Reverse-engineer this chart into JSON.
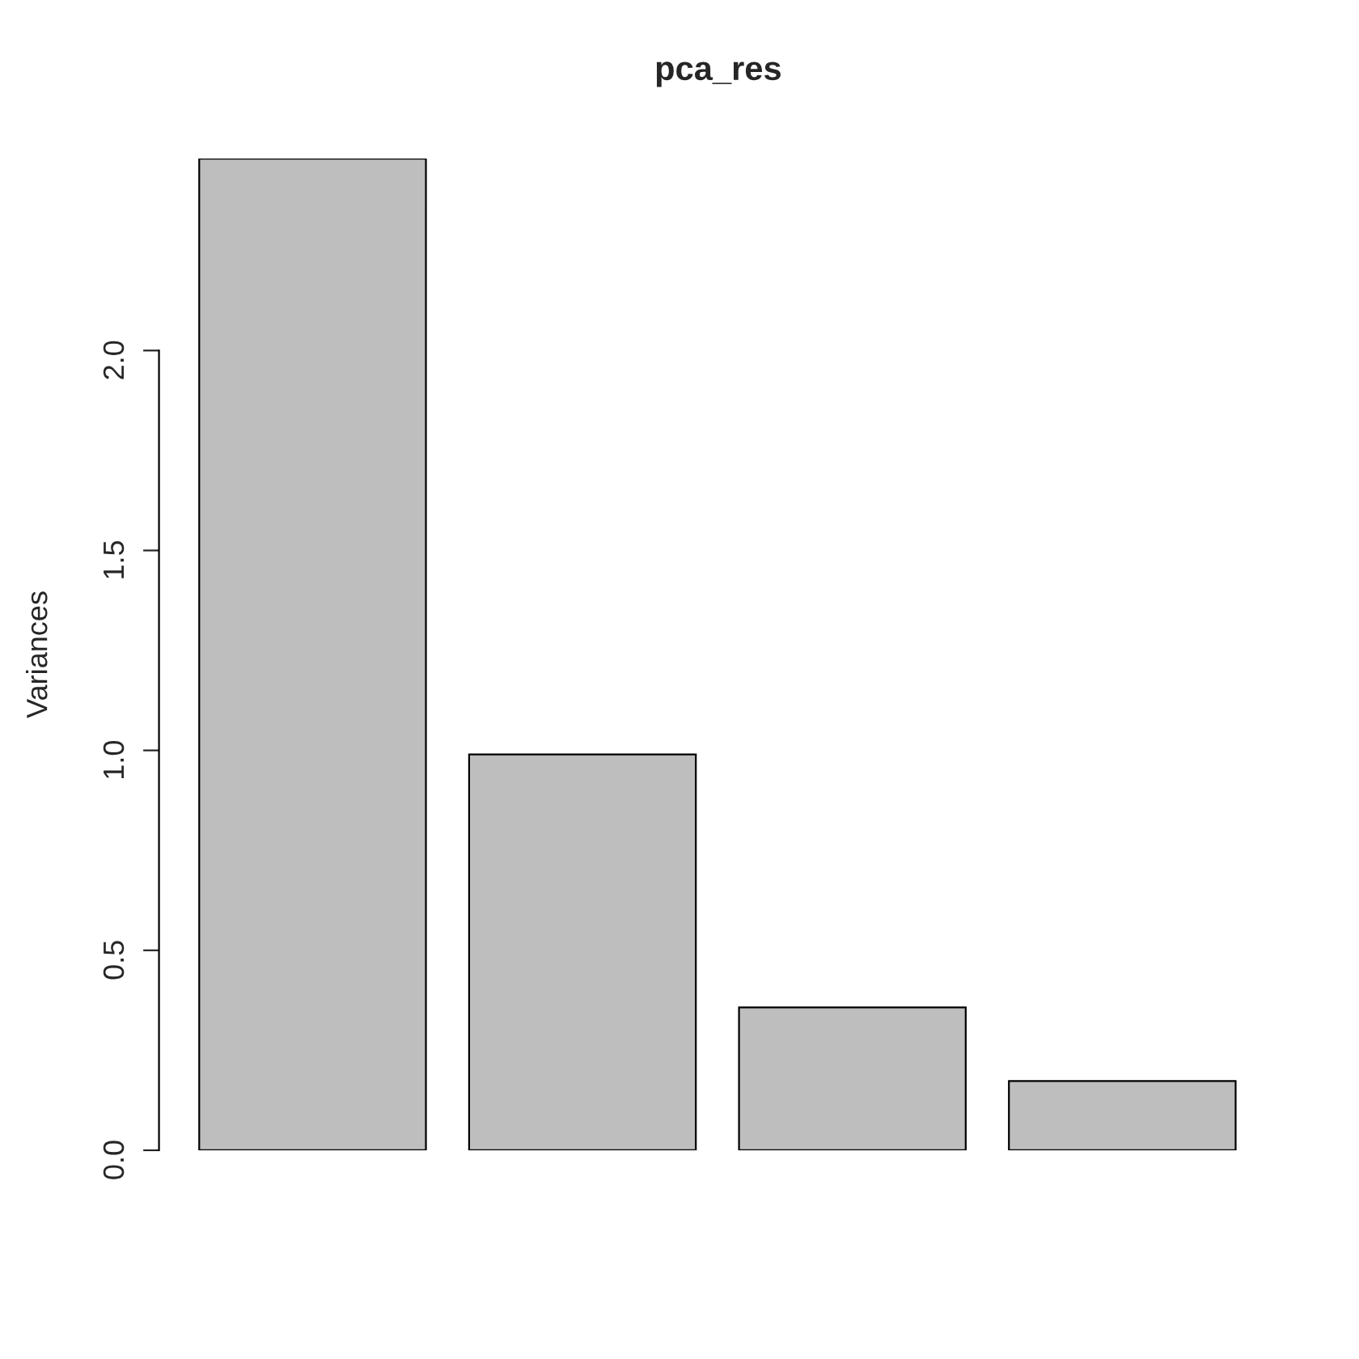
{
  "chart_data": {
    "type": "bar",
    "title": "pca_res",
    "ylabel": "Variances",
    "categories": [
      null,
      null,
      null,
      null
    ],
    "values": [
      2.48,
      0.99,
      0.357,
      0.173
    ],
    "color": "#bebebe",
    "ylim": [
      0,
      2.48
    ],
    "yticks": [
      {
        "value": 0,
        "label": "0.0"
      },
      {
        "value": 0.5,
        "label": "0.5"
      },
      {
        "value": 1.0,
        "label": "1.0"
      },
      {
        "value": 1.5,
        "label": "1.5"
      },
      {
        "value": 2.0,
        "label": "2.0"
      }
    ],
    "tick_labels": "y",
    "grid": false,
    "legend": false
  }
}
